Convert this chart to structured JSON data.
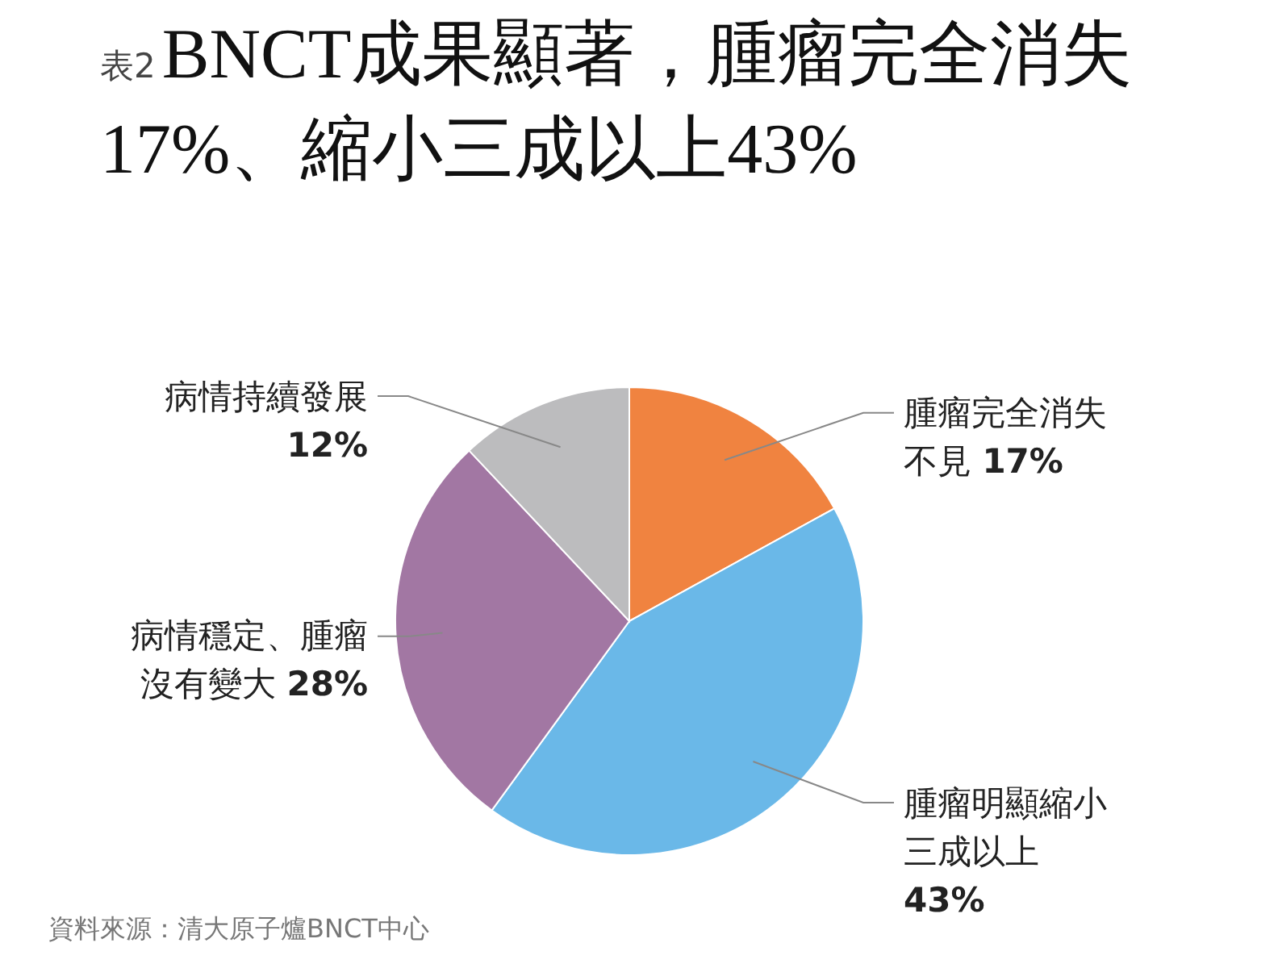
{
  "chart_data": {
    "type": "pie",
    "title": "BNCT成果顯著，腫瘤完全消失17%、縮小三成以上43%",
    "categories": [
      "腫瘤完全消失不見",
      "腫瘤明顯縮小三成以上",
      "病情穩定、腫瘤沒有變大",
      "病情持續發展"
    ],
    "values": [
      17,
      43,
      28,
      12
    ],
    "colors": [
      "#f08340",
      "#6ab8e8",
      "#a277a3",
      "#bcbcbe"
    ],
    "value_labels": [
      "17%",
      "43%",
      "28%",
      "12%"
    ],
    "annotations": [
      "表2",
      "資料來源：清大原子爐BNCT中心"
    ]
  }
}
